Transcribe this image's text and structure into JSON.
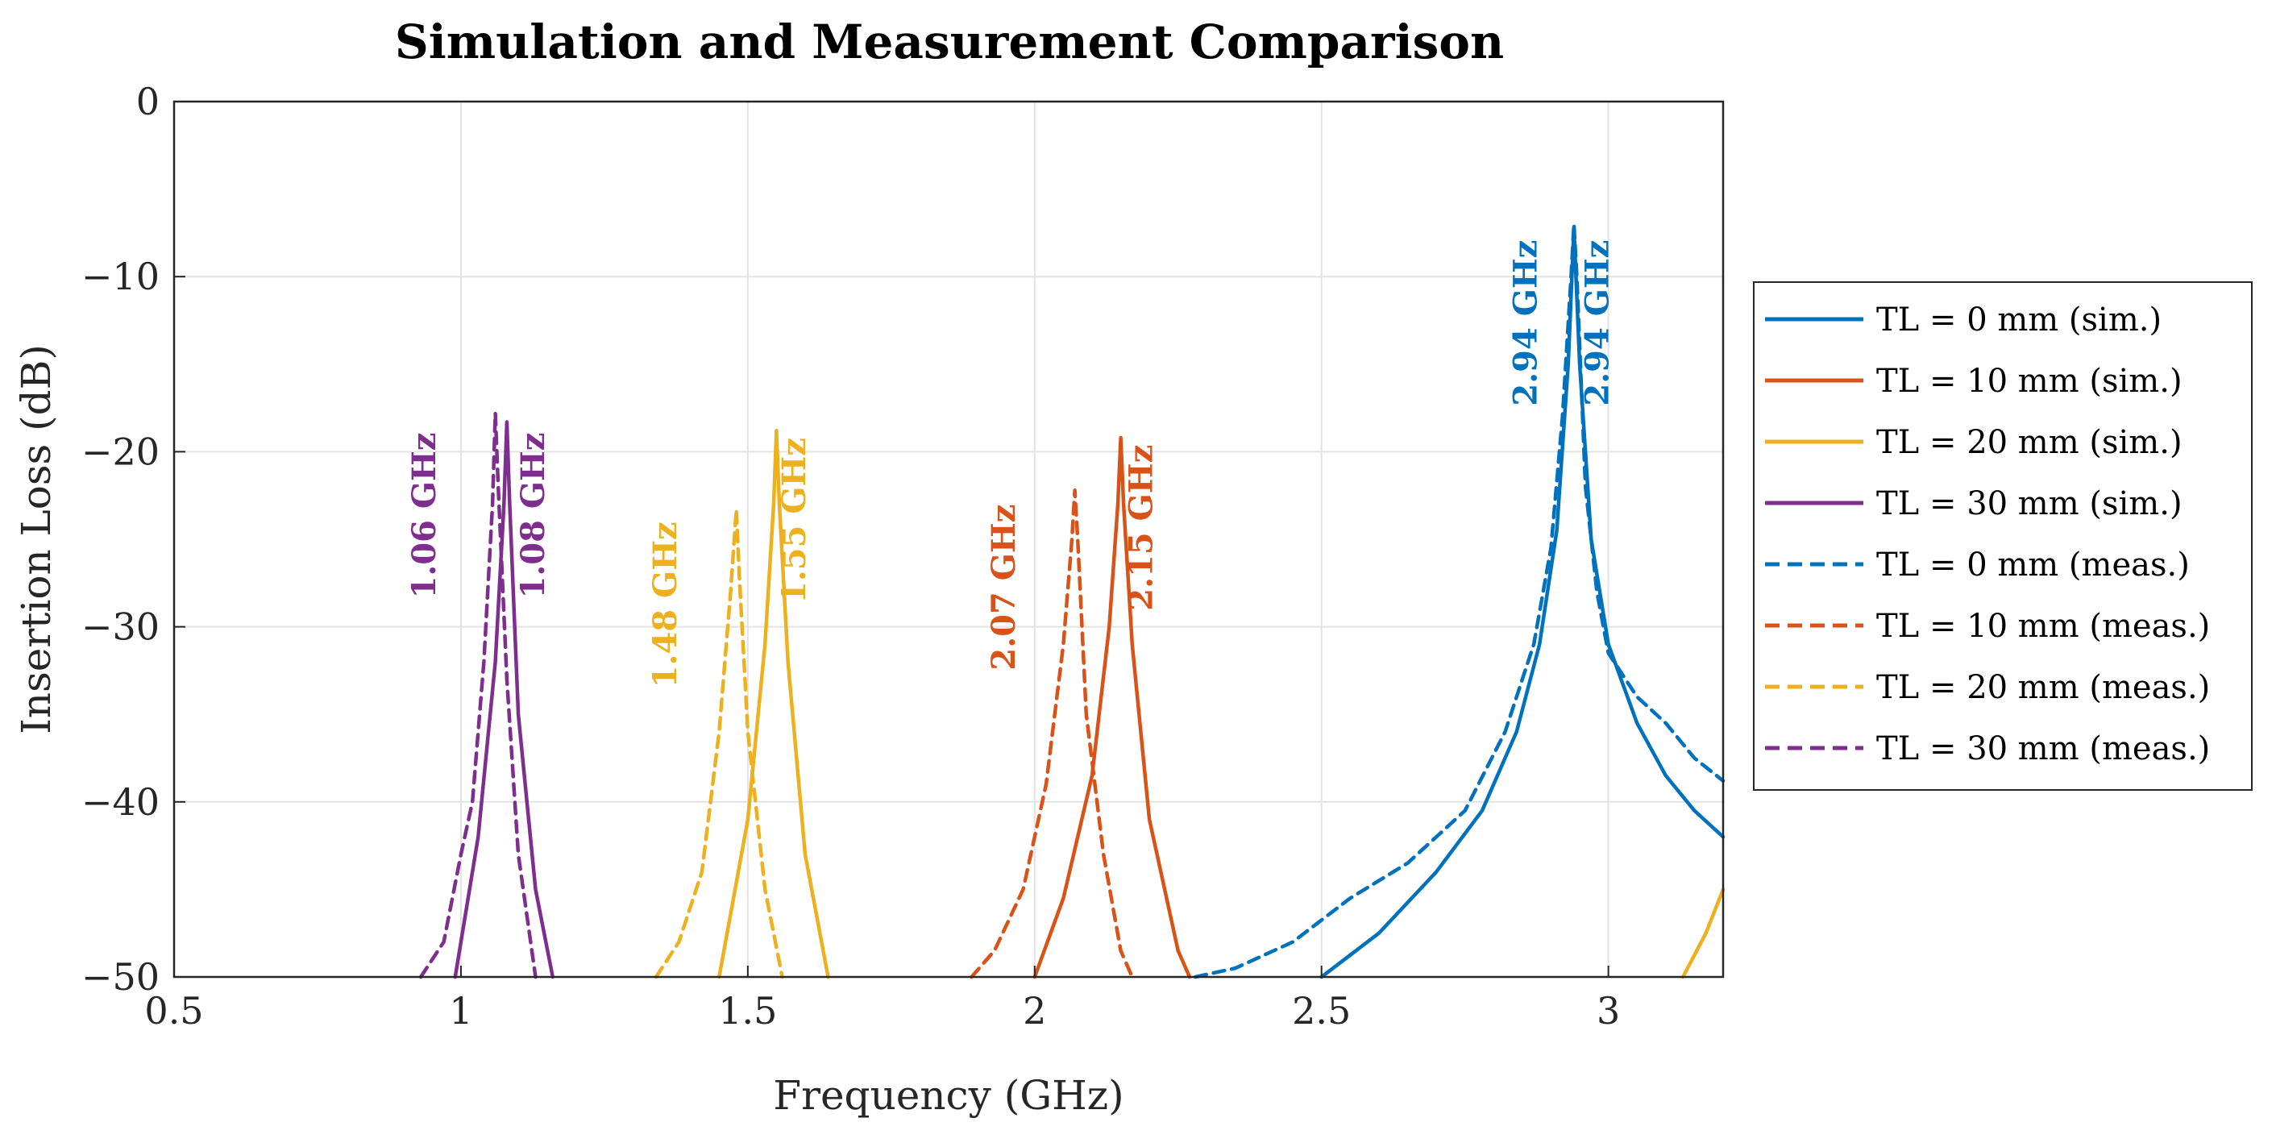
{
  "chart_data": {
    "type": "line",
    "title": "Simulation and Measurement Comparison",
    "xlabel": "Frequency (GHz)",
    "ylabel": "Insertion Loss (dB)",
    "xlim": [
      0.5,
      3.2
    ],
    "ylim": [
      -50,
      0
    ],
    "xticks": [
      0.5,
      1,
      1.5,
      2,
      2.5,
      3
    ],
    "xtick_labels": [
      "0.5",
      "1",
      "1.5",
      "2",
      "2.5",
      "3"
    ],
    "yticks": [
      0,
      -10,
      -20,
      -30,
      -40,
      -50
    ],
    "ytick_labels": [
      "0",
      "−10",
      "−20",
      "−30",
      "−40",
      "−50"
    ],
    "grid": true,
    "legend_position": "outside-right",
    "series": [
      {
        "name": "TL = 0 mm (sim.)",
        "color": "#0072BD",
        "style": "solid",
        "peak_x": 2.94,
        "peak_y": -7.2,
        "x": [
          2.5,
          2.6,
          2.7,
          2.78,
          2.84,
          2.88,
          2.91,
          2.93,
          2.94,
          2.95,
          2.97,
          3.0,
          3.05,
          3.1,
          3.15,
          3.2
        ],
        "y": [
          -50,
          -47.5,
          -44,
          -40.5,
          -36,
          -31,
          -24.5,
          -15,
          -7.2,
          -15,
          -25,
          -31,
          -35.5,
          -38.5,
          -40.5,
          -42
        ]
      },
      {
        "name": "TL = 10 mm (sim.)",
        "color": "#D95319",
        "style": "solid",
        "peak_x": 2.15,
        "peak_y": -19.2,
        "x": [
          2.0,
          2.05,
          2.1,
          2.13,
          2.145,
          2.15,
          2.155,
          2.17,
          2.2,
          2.25,
          2.27
        ],
        "y": [
          -50,
          -45.5,
          -38.5,
          -30,
          -23,
          -19.2,
          -23,
          -31,
          -41,
          -48.5,
          -50
        ]
      },
      {
        "name": "TL = 20 mm (sim.)",
        "color": "#EDB120",
        "style": "solid",
        "peak_x": 1.55,
        "peak_y": -18.8,
        "x": [
          1.45,
          1.5,
          1.53,
          1.545,
          1.55,
          1.555,
          1.57,
          1.6,
          1.64,
          3.13,
          3.17,
          3.2
        ],
        "y": [
          -50,
          -41,
          -31,
          -23,
          -18.8,
          -23,
          -32,
          -43,
          -50,
          -50,
          -47.5,
          -45
        ]
      },
      {
        "name": "TL = 30 mm (sim.)",
        "color": "#7E2F8E",
        "style": "solid",
        "peak_x": 1.08,
        "peak_y": -18.3,
        "x": [
          0.99,
          1.03,
          1.06,
          1.075,
          1.08,
          1.085,
          1.1,
          1.13,
          1.16
        ],
        "y": [
          -50,
          -42,
          -32,
          -23,
          -18.3,
          -23,
          -35,
          -45,
          -50
        ]
      },
      {
        "name": "TL = 0 mm (meas.)",
        "color": "#0072BD",
        "style": "dashed",
        "peak_x": 2.94,
        "peak_y": -7.0,
        "x": [
          2.28,
          2.35,
          2.45,
          2.55,
          2.65,
          2.75,
          2.82,
          2.87,
          2.9,
          2.92,
          2.935,
          2.94,
          2.945,
          2.96,
          2.98,
          3.0,
          3.05,
          3.1,
          3.15,
          3.2
        ],
        "y": [
          -50,
          -49.5,
          -48,
          -45.5,
          -43.5,
          -40.5,
          -36,
          -31,
          -25.5,
          -18,
          -10,
          -7.0,
          -10,
          -22,
          -28,
          -31.5,
          -34,
          -35.5,
          -37.5,
          -38.8
        ]
      },
      {
        "name": "TL = 10 mm (meas.)",
        "color": "#D95319",
        "style": "dashed",
        "peak_x": 2.07,
        "peak_y": -22.2,
        "x": [
          1.89,
          1.93,
          1.98,
          2.02,
          2.05,
          2.065,
          2.07,
          2.075,
          2.09,
          2.12,
          2.15,
          2.17
        ],
        "y": [
          -50,
          -48.5,
          -45,
          -39,
          -31,
          -25,
          -22.2,
          -25,
          -35,
          -43,
          -48.5,
          -50
        ]
      },
      {
        "name": "TL = 20 mm (meas.)",
        "color": "#EDB120",
        "style": "dashed",
        "peak_x": 1.48,
        "peak_y": -23.3,
        "x": [
          1.34,
          1.38,
          1.42,
          1.45,
          1.47,
          1.48,
          1.485,
          1.5,
          1.53,
          1.56
        ],
        "y": [
          -50,
          -48,
          -44,
          -36,
          -28,
          -23.3,
          -27,
          -36,
          -45,
          -50
        ]
      },
      {
        "name": "TL = 30 mm (meas.)",
        "color": "#7E2F8E",
        "style": "dashed",
        "peak_x": 1.06,
        "peak_y": -17.8,
        "x": [
          0.93,
          0.97,
          1.0,
          1.02,
          1.04,
          1.055,
          1.06,
          1.065,
          1.08,
          1.1,
          1.13
        ],
        "y": [
          -50,
          -48,
          -43,
          -40,
          -32,
          -23,
          -17.8,
          -22,
          -33,
          -43,
          -50
        ]
      }
    ],
    "annotations": [
      {
        "text": "1.06 GHz",
        "x": 0.955,
        "y": -18.9,
        "color": "#7E2F8E"
      },
      {
        "text": "1.08 GHz",
        "x": 1.145,
        "y": -18.9,
        "color": "#7E2F8E"
      },
      {
        "text": "1.48 GHz",
        "x": 1.375,
        "y": -24.0,
        "color": "#EDB120"
      },
      {
        "text": "1.55 GHz",
        "x": 1.6,
        "y": -19.2,
        "color": "#EDB120"
      },
      {
        "text": "2.07 GHz",
        "x": 1.965,
        "y": -23.0,
        "color": "#D95319"
      },
      {
        "text": "2.15 GHz",
        "x": 2.205,
        "y": -19.6,
        "color": "#D95319"
      },
      {
        "text": "2.94 GHz",
        "x": 2.875,
        "y": -7.9,
        "color": "#0072BD"
      },
      {
        "text": "2.94 GHz",
        "x": 3.0,
        "y": -7.9,
        "color": "#0072BD"
      }
    ]
  }
}
